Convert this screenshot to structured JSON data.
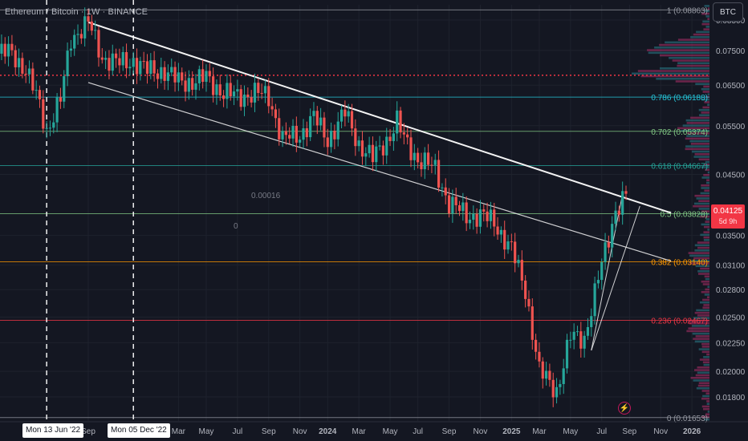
{
  "header": {
    "symbol_title": "Ethereum / Bitcoin · 1W · BINANCE",
    "currency_button": "BTC"
  },
  "price_badge": {
    "price": "0.04125",
    "countdown": "5d 9h"
  },
  "crosshair_dates": [
    "Mon 13 Jun '22",
    "Mon 05 Dec '22"
  ],
  "colors": {
    "background": "#141722",
    "up": "#26a69a",
    "down": "#ef5350",
    "trendline": "#ffffff",
    "volume_profile_up": "#2a7e8c",
    "volume_profile_down": "#b0306a"
  },
  "icons": [
    "lightning-icon"
  ],
  "chart_data": {
    "type": "candlestick",
    "title": "Ethereum / Bitcoin · 1W · BINANCE",
    "y_scale": "log",
    "ylim": [
      0.0163,
      0.0905
    ],
    "y_ticks": [
      "0.08500",
      "0.07500",
      "0.06500",
      "0.05500",
      "0.04500",
      "0.03500",
      "0.03100",
      "0.02800",
      "0.02500",
      "0.02250",
      "0.02000",
      "0.01800"
    ],
    "y_tick_values": [
      0.085,
      0.075,
      0.065,
      0.055,
      0.045,
      0.035,
      0.031,
      0.028,
      0.025,
      0.0225,
      0.02,
      0.018
    ],
    "x_ticks": [
      "Mar",
      "Sep",
      "Mar",
      "May",
      "Jul",
      "Sep",
      "Nov",
      "2024",
      "Mar",
      "May",
      "Jul",
      "Sep",
      "Nov",
      "2025",
      "Mar",
      "May",
      "Jul",
      "Sep",
      "Nov",
      "2026"
    ],
    "x_tick_dates": [
      "2022-03-07",
      "2022-09-05",
      "2023-03-06",
      "2023-05-01",
      "2023-07-03",
      "2023-09-04",
      "2023-11-06",
      "2024-01-01",
      "2024-03-04",
      "2024-05-06",
      "2024-07-01",
      "2024-09-02",
      "2024-11-04",
      "2025-01-06",
      "2025-03-03",
      "2025-05-05",
      "2025-07-07",
      "2025-09-01",
      "2025-11-03",
      "2026-01-05"
    ],
    "visible_x_tick_labels": [
      "Sep",
      "Mar",
      "May",
      "Jul",
      "Sep",
      "Nov",
      "2024",
      "Mar",
      "May",
      "Jul",
      "Sep",
      "Nov",
      "2025",
      "Mar",
      "May",
      "Jul",
      "Sep",
      "Nov",
      "2026"
    ],
    "fib_levels": [
      {
        "ratio": "1",
        "label": "1 (0.08863)",
        "value": 0.08863,
        "color": "#9598a1"
      },
      {
        "ratio": "0.786",
        "label": "0.786 (0.06188)",
        "value": 0.06188,
        "color": "#26c6da"
      },
      {
        "ratio": "0.702",
        "label": "0.702 (0.05374)",
        "value": 0.05374,
        "color": "#81c784"
      },
      {
        "ratio": "0.618",
        "label": "0.618 (0.04667)",
        "value": 0.04667,
        "color": "#26a69a"
      },
      {
        "ratio": "0.5",
        "label": "0.5 (0.03828)",
        "value": 0.03828,
        "color": "#81c784"
      },
      {
        "ratio": "0.382",
        "label": "0.382 (0.03140)",
        "value": 0.0314,
        "color": "#ff9800"
      },
      {
        "ratio": "0.236",
        "label": "0.236 (0.02467)",
        "value": 0.02467,
        "color": "#f23645"
      },
      {
        "ratio": "0",
        "label": "0 (0.01653)",
        "value": 0.01653,
        "color": "#9598a1"
      }
    ],
    "poc_value": 0.0677,
    "annotations": [
      "0.00016",
      "0"
    ],
    "price_series": {
      "name": "ETH/BTC",
      "dates": [
        "2022-03-07",
        "2022-04-04",
        "2022-05-02",
        "2022-05-30",
        "2022-06-13",
        "2022-07-11",
        "2022-08-01",
        "2022-09-05",
        "2022-10-03",
        "2022-11-07",
        "2022-12-05",
        "2023-01-02",
        "2023-02-06",
        "2023-03-06",
        "2023-04-03",
        "2023-05-01",
        "2023-06-05",
        "2023-07-03",
        "2023-08-07",
        "2023-09-04",
        "2023-10-02",
        "2023-11-06",
        "2023-12-04",
        "2024-01-01",
        "2024-02-05",
        "2024-03-04",
        "2024-04-01",
        "2024-05-06",
        "2024-05-20",
        "2024-06-03",
        "2024-07-01",
        "2024-08-05",
        "2024-09-02",
        "2024-10-07",
        "2024-11-04",
        "2024-12-02",
        "2025-01-06",
        "2025-02-03",
        "2025-03-03",
        "2025-04-07",
        "2025-05-05",
        "2025-06-02",
        "2025-07-07",
        "2025-08-04",
        "2025-08-25"
      ],
      "closes": [
        0.074,
        0.0745,
        0.069,
        0.06,
        0.054,
        0.061,
        0.079,
        0.084,
        0.073,
        0.071,
        0.072,
        0.069,
        0.069,
        0.066,
        0.066,
        0.067,
        0.063,
        0.062,
        0.063,
        0.062,
        0.052,
        0.053,
        0.057,
        0.052,
        0.058,
        0.051,
        0.048,
        0.053,
        0.056,
        0.052,
        0.048,
        0.046,
        0.04,
        0.038,
        0.038,
        0.037,
        0.033,
        0.028,
        0.02,
        0.0185,
        0.023,
        0.023,
        0.031,
        0.039,
        0.0412
      ]
    },
    "trendlines": [
      {
        "name": "channel-top",
        "from": {
          "date": "2022-09-05",
          "value": 0.0842
        },
        "to": {
          "date": "2025-11-24",
          "value": 0.0384
        }
      },
      {
        "name": "channel-bottom",
        "from": {
          "date": "2022-09-05",
          "value": 0.0657
        },
        "to": {
          "date": "2025-11-24",
          "value": 0.0315
        }
      },
      {
        "name": "wedge-rise-1",
        "from": {
          "date": "2025-06-16",
          "value": 0.0218
        },
        "to": {
          "date": "2025-08-18",
          "value": 0.0415
        }
      },
      {
        "name": "wedge-rise-2",
        "from": {
          "date": "2025-06-16",
          "value": 0.0218
        },
        "to": {
          "date": "2025-09-22",
          "value": 0.0395
        }
      }
    ],
    "crosshair_dates": [
      "2022-06-13",
      "2022-12-05"
    ]
  }
}
